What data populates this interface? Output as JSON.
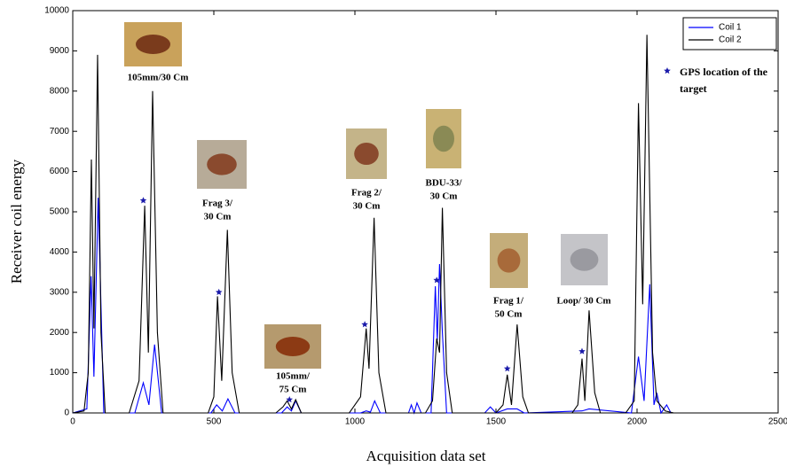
{
  "chart_data": {
    "type": "line",
    "xlabel": "Acquisition data set",
    "ylabel": "Receiver coil energy",
    "xlim": [
      0,
      2500
    ],
    "xticks": [
      0,
      500,
      1000,
      1500,
      2000,
      2500
    ],
    "ylim": [
      0,
      10000
    ],
    "yticks": [
      0,
      1000,
      2000,
      3000,
      4000,
      5000,
      6000,
      7000,
      8000,
      9000,
      10000
    ],
    "legend": "upper right",
    "series": [
      {
        "name": "Coil 1",
        "color": "#0000ff",
        "x": [
          0,
          50,
          65,
          75,
          90,
          110,
          220,
          250,
          270,
          290,
          315,
          490,
          510,
          530,
          550,
          575,
          740,
          760,
          775,
          790,
          810,
          1020,
          1040,
          1055,
          1070,
          1090,
          1190,
          1200,
          1210,
          1220,
          1235,
          1270,
          1285,
          1292,
          1300,
          1310,
          1325,
          1460,
          1480,
          1500,
          1540,
          1575,
          1600,
          1805,
          1830,
          1980,
          2005,
          2025,
          2045,
          2060,
          2070,
          2085,
          2105,
          2120
        ],
        "values": [
          0,
          100,
          3400,
          900,
          5350,
          0,
          0,
          750,
          200,
          1700,
          0,
          0,
          200,
          50,
          350,
          0,
          0,
          150,
          50,
          300,
          0,
          0,
          50,
          20,
          300,
          0,
          0,
          200,
          0,
          250,
          0,
          0,
          3150,
          1800,
          3700,
          2000,
          0,
          0,
          150,
          0,
          100,
          100,
          0,
          50,
          100,
          0,
          1400,
          300,
          3200,
          200,
          500,
          0,
          200,
          0
        ]
      },
      {
        "name": "Coil 2",
        "color": "#000000",
        "x": [
          0,
          40,
          55,
          66,
          75,
          88,
          100,
          115,
          200,
          235,
          255,
          268,
          283,
          300,
          320,
          480,
          500,
          513,
          528,
          548,
          565,
          590,
          720,
          745,
          760,
          775,
          790,
          810,
          980,
          1020,
          1040,
          1050,
          1068,
          1085,
          1110,
          1250,
          1275,
          1290,
          1300,
          1310,
          1325,
          1345,
          1500,
          1525,
          1540,
          1555,
          1575,
          1595,
          1615,
          1770,
          1790,
          1805,
          1815,
          1830,
          1850,
          1870,
          1960,
          1990,
          2005,
          2020,
          2035,
          2055,
          2070,
          2100,
          2130
        ],
        "values": [
          0,
          50,
          1000,
          6300,
          2100,
          8900,
          2000,
          0,
          0,
          800,
          5150,
          1500,
          8000,
          2000,
          0,
          0,
          400,
          2900,
          800,
          4550,
          1000,
          0,
          0,
          150,
          300,
          100,
          330,
          0,
          0,
          400,
          2100,
          1100,
          4850,
          1000,
          0,
          0,
          300,
          1850,
          1500,
          5100,
          1000,
          0,
          0,
          200,
          950,
          200,
          2200,
          400,
          0,
          0,
          200,
          1350,
          300,
          2550,
          500,
          0,
          0,
          300,
          7700,
          2700,
          9400,
          1500,
          300,
          50,
          0
        ]
      },
      {
        "name": "GPS location of the target",
        "color": "#1a1aaa",
        "type": "scatter",
        "x": [
          250,
          518,
          768,
          1035,
          1290,
          1540,
          1805
        ],
        "values": [
          5280,
          3000,
          330,
          2200,
          3300,
          1100,
          1530
        ]
      }
    ],
    "annotations": [
      {
        "lines": [
          "105mm/30 Cm"
        ]
      },
      {
        "lines": [
          "Frag 3/",
          "30 Cm"
        ]
      },
      {
        "lines": [
          "105mm/",
          "75 Cm"
        ]
      },
      {
        "lines": [
          "Frag 2/",
          "30 Cm"
        ]
      },
      {
        "lines": [
          "BDU-33/",
          "30 Cm"
        ]
      },
      {
        "lines": [
          "Frag 1/",
          "50 Cm"
        ]
      },
      {
        "lines": [
          "Loop/ 30 Cm"
        ]
      }
    ]
  }
}
